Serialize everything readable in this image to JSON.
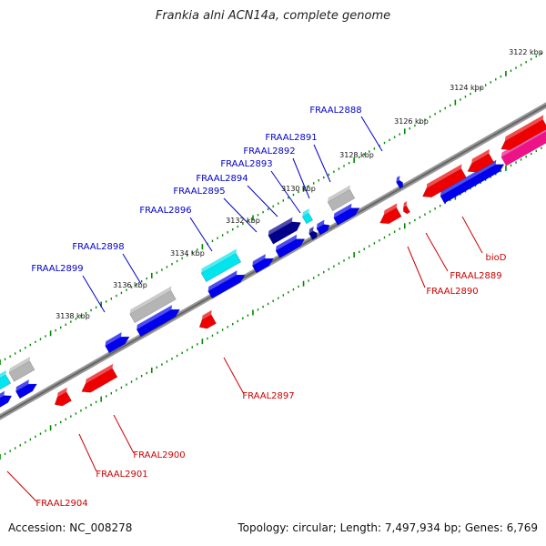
{
  "title": "Frankia alni ACN14a, complete genome",
  "accession": "Accession: NC_008278",
  "summary": "Topology: circular; Length: 7,497,934 bp; Genes: 6,769",
  "colors": {
    "forward_gene": "#0000ee",
    "forward_gene_alt": "#00008b",
    "reverse_gene": "#ee0000",
    "rna_gene": "#00e5ee",
    "pseudo_gene": "#b5b5b5",
    "special_gene": "#ee1289",
    "scale_tick": "#008b00",
    "backbone": "#8a8a8a",
    "forward_label": "#0000cc",
    "reverse_label": "#cc0000"
  },
  "scale_labels": [
    "3122 kbp",
    "3124 kbp",
    "3126 kbp",
    "3128 kbp",
    "3130 kbp",
    "3132 kbp",
    "3134 kbp",
    "3136 kbp",
    "3138 kbp"
  ],
  "forward_labels": [
    "FRAAL2888",
    "FRAAL2891",
    "FRAAL2892",
    "FRAAL2893",
    "FRAAL2894",
    "FRAAL2895",
    "FRAAL2896",
    "FRAAL2898",
    "FRAAL2899"
  ],
  "reverse_labels": [
    "bioD",
    "FRAAL2889",
    "FRAAL2890",
    "FRAAL2897",
    "FRAAL2900",
    "FRAAL2901",
    "FRAAL2904"
  ]
}
